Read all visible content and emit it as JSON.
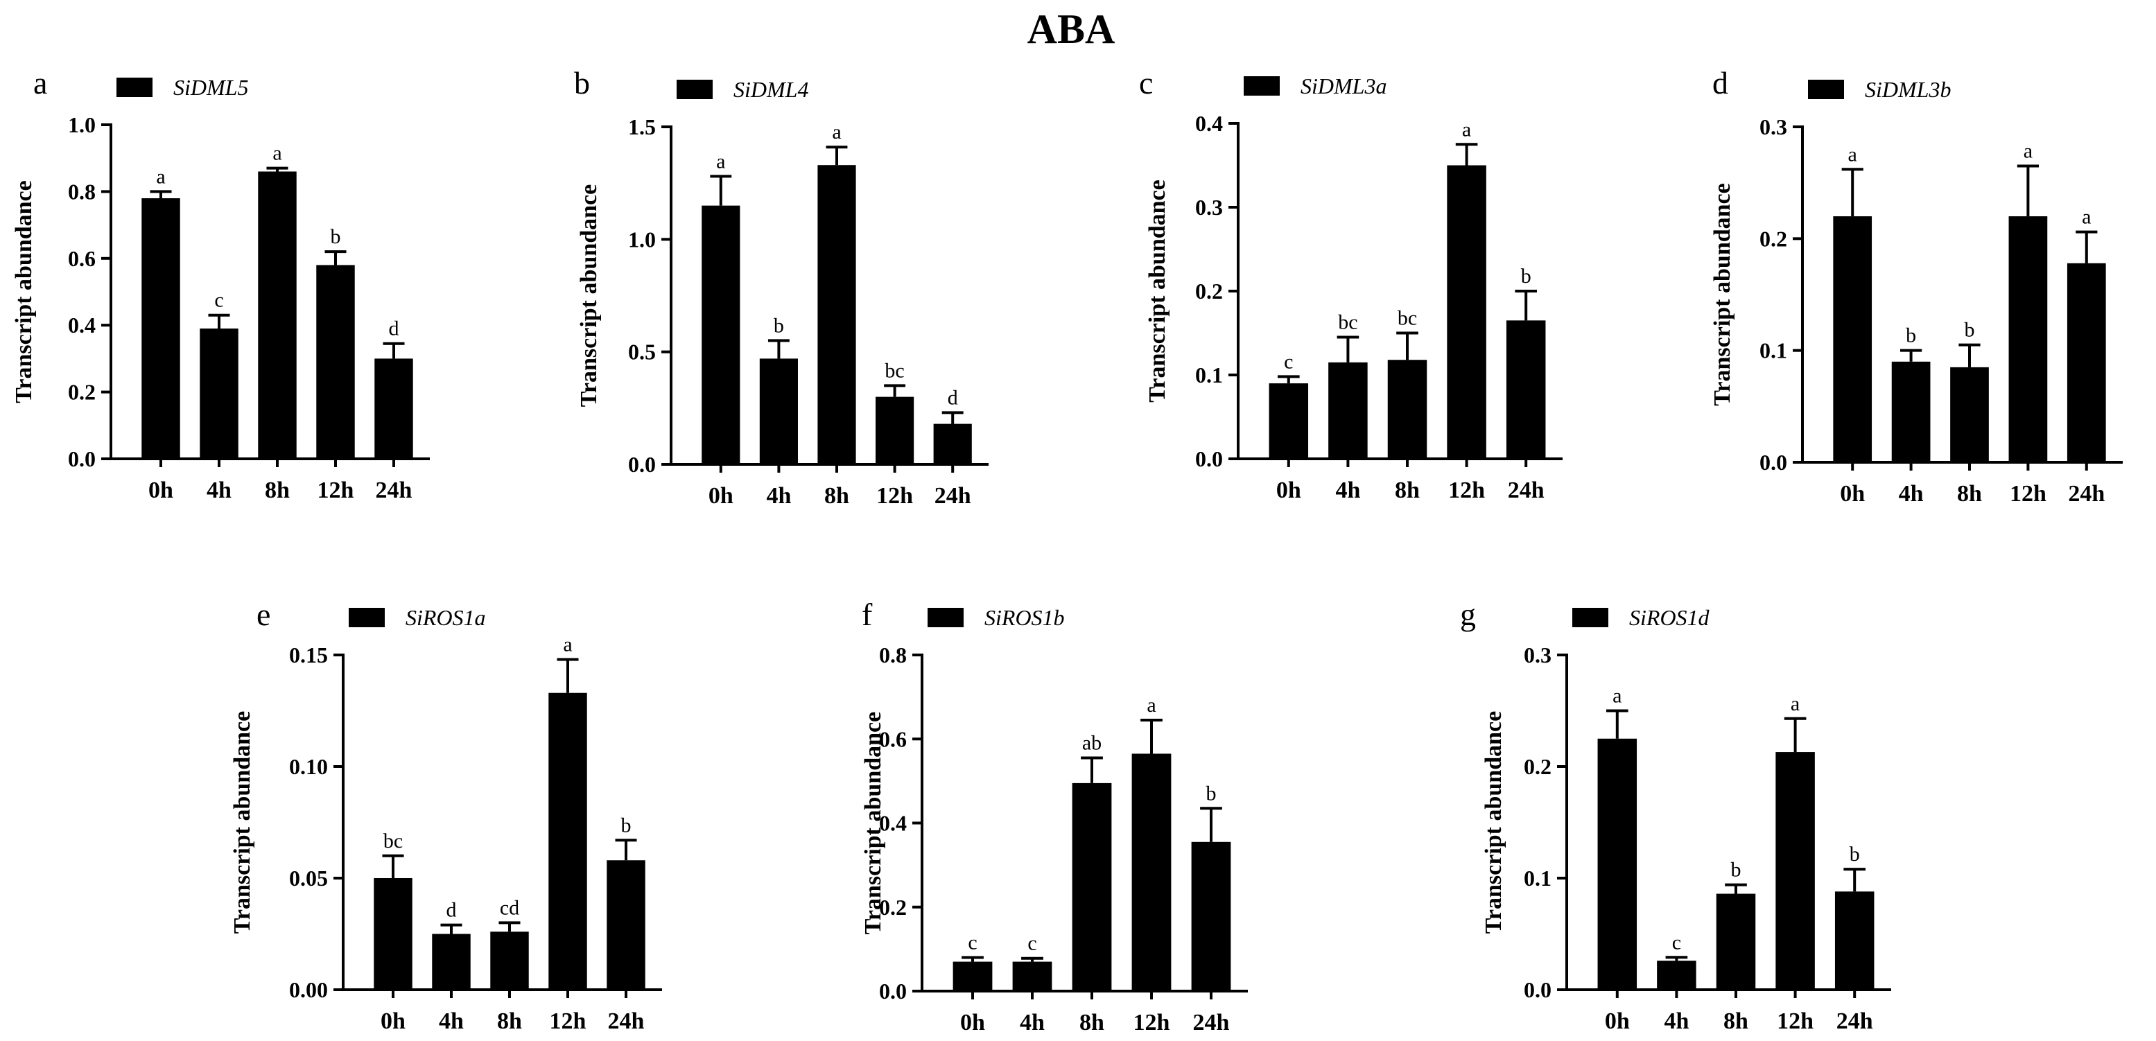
{
  "figure_title": "ABA",
  "chart_data": [
    {
      "panel": "a",
      "type": "bar",
      "legend": "SiDML5",
      "ylabel": "Transcript abundance",
      "categories": [
        "0h",
        "4h",
        "8h",
        "12h",
        "24h"
      ],
      "values": [
        0.78,
        0.39,
        0.86,
        0.58,
        0.3
      ],
      "errors": [
        0.02,
        0.04,
        0.01,
        0.04,
        0.045
      ],
      "letters": [
        "a",
        "c",
        "a",
        "b",
        "d"
      ],
      "ylim": [
        0,
        1.0
      ],
      "yticks": [
        0.0,
        0.2,
        0.4,
        0.6,
        0.8,
        1.0
      ],
      "ytick_labels": [
        "0.0",
        "0.2",
        "0.4",
        "0.6",
        "0.8",
        "1.0"
      ]
    },
    {
      "panel": "b",
      "type": "bar",
      "legend": "SiDML4",
      "ylabel": "Transcript abundance",
      "categories": [
        "0h",
        "4h",
        "8h",
        "12h",
        "24h"
      ],
      "values": [
        1.15,
        0.47,
        1.33,
        0.3,
        0.18
      ],
      "errors": [
        0.13,
        0.08,
        0.08,
        0.05,
        0.05
      ],
      "letters": [
        "a",
        "b",
        "a",
        "bc",
        "d"
      ],
      "ylim": [
        0,
        1.5
      ],
      "yticks": [
        0.0,
        0.5,
        1.0,
        1.5
      ],
      "ytick_labels": [
        "0.0",
        "0.5",
        "1.0",
        "1.5"
      ]
    },
    {
      "panel": "c",
      "type": "bar",
      "legend": "SiDML3a",
      "ylabel": "Transcript abundance",
      "categories": [
        "0h",
        "4h",
        "8h",
        "12h",
        "24h"
      ],
      "values": [
        0.09,
        0.115,
        0.118,
        0.35,
        0.165
      ],
      "errors": [
        0.008,
        0.03,
        0.032,
        0.025,
        0.035
      ],
      "letters": [
        "c",
        "bc",
        "bc",
        "a",
        "b"
      ],
      "ylim": [
        0,
        0.4
      ],
      "yticks": [
        0.0,
        0.1,
        0.2,
        0.3,
        0.4
      ],
      "ytick_labels": [
        "0.0",
        "0.1",
        "0.2",
        "0.3",
        "0.4"
      ]
    },
    {
      "panel": "d",
      "type": "bar",
      "legend": "SiDML3b",
      "ylabel": "Transcript abundance",
      "categories": [
        "0h",
        "4h",
        "8h",
        "12h",
        "24h"
      ],
      "values": [
        0.22,
        0.09,
        0.085,
        0.22,
        0.178
      ],
      "errors": [
        0.042,
        0.01,
        0.02,
        0.045,
        0.028
      ],
      "letters": [
        "a",
        "b",
        "b",
        "a",
        "a"
      ],
      "ylim": [
        0,
        0.3
      ],
      "yticks": [
        0.0,
        0.1,
        0.2,
        0.3
      ],
      "ytick_labels": [
        "0.0",
        "0.1",
        "0.2",
        "0.3"
      ]
    },
    {
      "panel": "e",
      "type": "bar",
      "legend": "SiROS1a",
      "ylabel": "Transcript abundance",
      "categories": [
        "0h",
        "4h",
        "8h",
        "12h",
        "24h"
      ],
      "values": [
        0.05,
        0.025,
        0.026,
        0.133,
        0.058
      ],
      "errors": [
        0.01,
        0.004,
        0.004,
        0.015,
        0.009
      ],
      "letters": [
        "bc",
        "d",
        "cd",
        "a",
        "b"
      ],
      "ylim": [
        0,
        0.15
      ],
      "yticks": [
        0.0,
        0.05,
        0.1,
        0.15
      ],
      "ytick_labels": [
        "0.00",
        "0.05",
        "0.10",
        "0.15"
      ]
    },
    {
      "panel": "f",
      "type": "bar",
      "legend": "SiROS1b",
      "ylabel": "Transcript abundance",
      "categories": [
        "0h",
        "4h",
        "8h",
        "12h",
        "24h"
      ],
      "values": [
        0.07,
        0.07,
        0.495,
        0.565,
        0.355
      ],
      "errors": [
        0.01,
        0.008,
        0.06,
        0.08,
        0.08
      ],
      "letters": [
        "c",
        "c",
        "ab",
        "a",
        "b"
      ],
      "ylim": [
        0,
        0.8
      ],
      "yticks": [
        0.0,
        0.2,
        0.4,
        0.6,
        0.8
      ],
      "ytick_labels": [
        "0.0",
        "0.2",
        "0.4",
        "0.6",
        "0.8"
      ]
    },
    {
      "panel": "g",
      "type": "bar",
      "legend": "SiROS1d",
      "ylabel": "Transcript abundance",
      "categories": [
        "0h",
        "4h",
        "8h",
        "12h",
        "24h"
      ],
      "values": [
        0.225,
        0.026,
        0.086,
        0.213,
        0.088
      ],
      "errors": [
        0.025,
        0.003,
        0.008,
        0.03,
        0.02
      ],
      "letters": [
        "a",
        "c",
        "b",
        "a",
        "b"
      ],
      "ylim": [
        0,
        0.3
      ],
      "yticks": [
        0.0,
        0.1,
        0.2,
        0.3
      ],
      "ytick_labels": [
        "0.0",
        "0.1",
        "0.2",
        "0.3"
      ]
    }
  ]
}
